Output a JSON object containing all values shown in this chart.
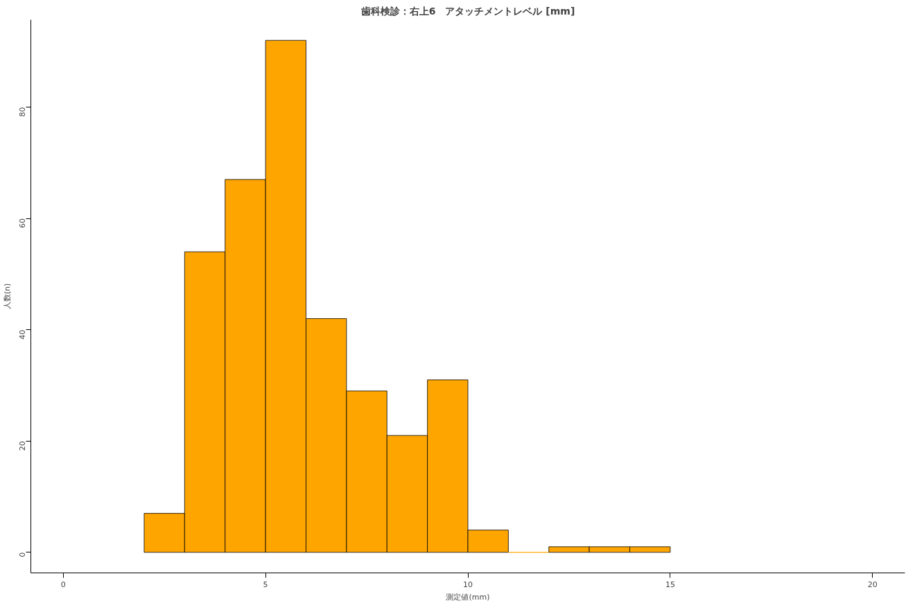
{
  "chart_data": {
    "type": "histogram",
    "title": "歯科検診：右上6　アタッチメントレベル [mm]",
    "xlabel": "測定値(mm)",
    "ylabel": "人数(n)",
    "bins": [
      2,
      3,
      4,
      5,
      6,
      7,
      8,
      9,
      10,
      11,
      12,
      13,
      14,
      15
    ],
    "values": [
      7,
      54,
      67,
      92,
      42,
      29,
      21,
      31,
      4,
      0,
      1,
      1,
      1
    ],
    "color": "#ffa500",
    "xlim": [
      -0.8,
      20.8
    ],
    "ylim": [
      -3.7,
      95.7
    ],
    "xticks": [
      0,
      5,
      10,
      15,
      20
    ],
    "yticks": [
      0,
      20,
      40,
      60,
      80
    ],
    "grid": false
  }
}
